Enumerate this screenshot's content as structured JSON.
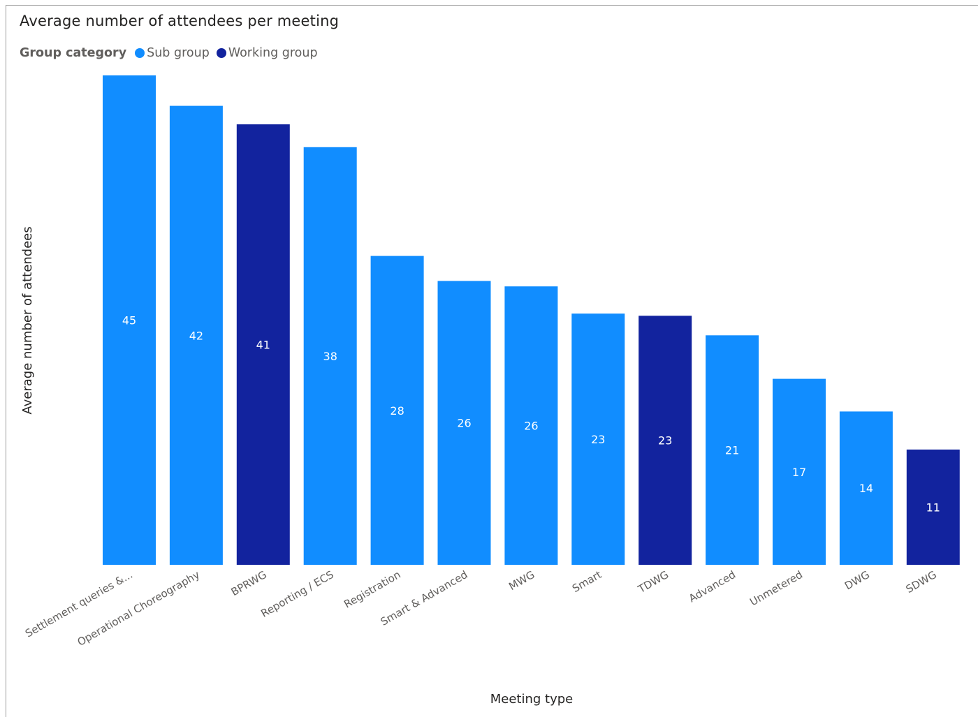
{
  "chart_data": {
    "type": "bar",
    "title": "Average number of attendees per meeting",
    "xlabel": "Meeting type",
    "ylabel": "Average number of attendees",
    "legend": {
      "title": "Group category",
      "position": "top-left",
      "items": [
        {
          "name": "Sub group",
          "color": "#118dff"
        },
        {
          "name": "Working group",
          "color": "#12239e"
        }
      ]
    },
    "categories": [
      "Settlement queries &...",
      "Operational Choreography",
      "BPRWG",
      "Reporting / ECS",
      "Registration",
      "Smart & Advanced",
      "MWG",
      "Smart",
      "TDWG",
      "Advanced",
      "Unmetered",
      "DWG",
      "SDWG"
    ],
    "values": [
      45,
      42,
      41,
      38,
      28,
      26,
      26,
      23,
      23,
      21,
      17,
      14,
      11
    ],
    "bar_values": [
      45.0,
      42.2,
      40.5,
      38.4,
      28.4,
      26.1,
      25.6,
      23.1,
      22.9,
      21.1,
      17.1,
      14.1,
      10.6
    ],
    "group": [
      "Sub group",
      "Sub group",
      "Working group",
      "Sub group",
      "Sub group",
      "Sub group",
      "Sub group",
      "Sub group",
      "Working group",
      "Sub group",
      "Sub group",
      "Sub group",
      "Working group"
    ],
    "ylim": [
      0,
      45
    ],
    "grid": false,
    "data_labels": true
  }
}
